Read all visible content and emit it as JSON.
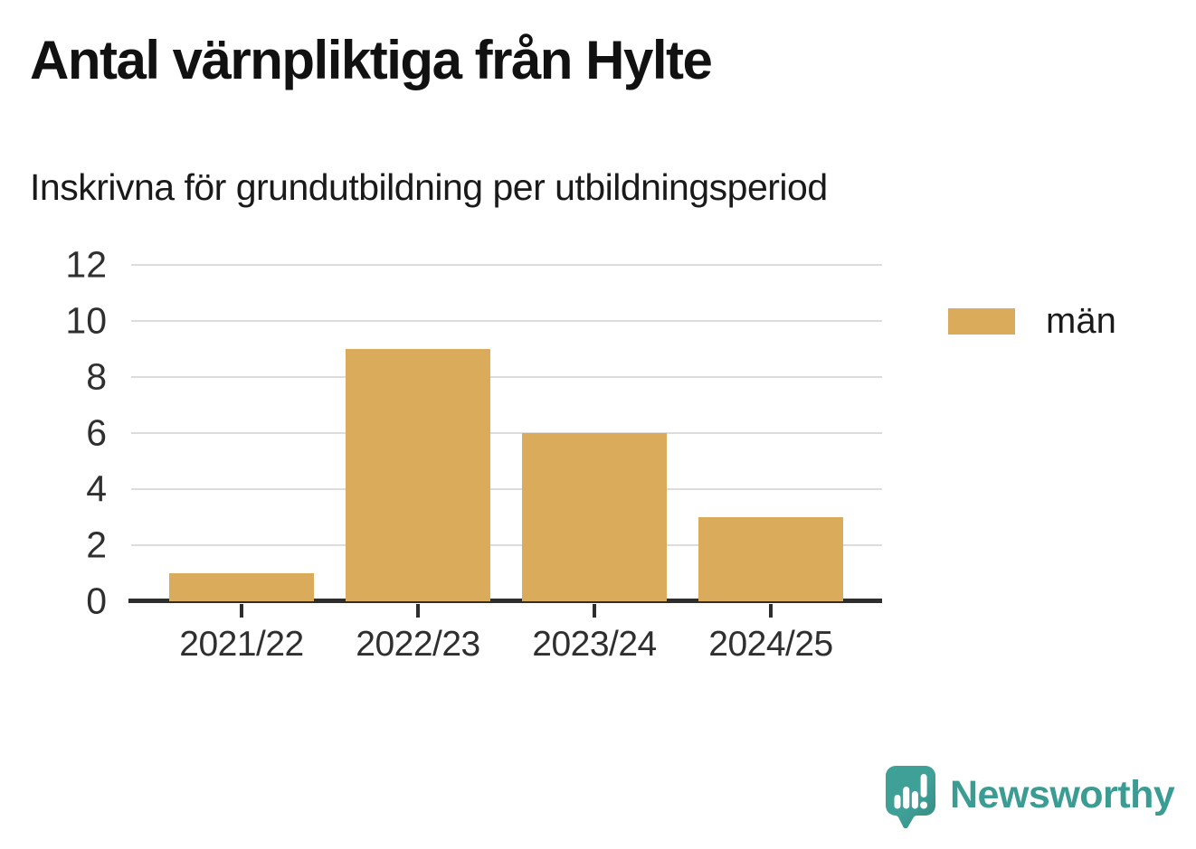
{
  "header": {
    "title": "Antal värnpliktiga från Hylte",
    "subtitle": "Inskrivna för grundutbildning per utbildningsperiod"
  },
  "chart_data": {
    "type": "bar",
    "categories": [
      "2021/22",
      "2022/23",
      "2023/24",
      "2024/25"
    ],
    "series": [
      {
        "name": "män",
        "values": [
          1,
          9,
          6,
          3
        ]
      }
    ],
    "title": "Antal värnpliktiga från Hylte",
    "subtitle": "Inskrivna för grundutbildning per utbildningsperiod",
    "xlabel": "",
    "ylabel": "",
    "ylim": [
      0,
      12
    ],
    "yticks": [
      0,
      2,
      4,
      6,
      8,
      10,
      12
    ],
    "grid": true,
    "legend_position": "right",
    "bar_color": "#DBAB5C"
  },
  "legend": {
    "items": [
      {
        "label": "män",
        "color": "#DBAB5C"
      }
    ]
  },
  "colors": {
    "bar": "#DBAB5C",
    "gridline": "#DCDCDC",
    "axis": "#2E2E2E",
    "title_text": "#111111",
    "tick_text": "#2F2F2F",
    "brand_teal": "#3B9C93"
  },
  "footer": {
    "brand": "Newsworthy",
    "logo_icon": "newsworthy-speech-bubble-chart-icon"
  }
}
